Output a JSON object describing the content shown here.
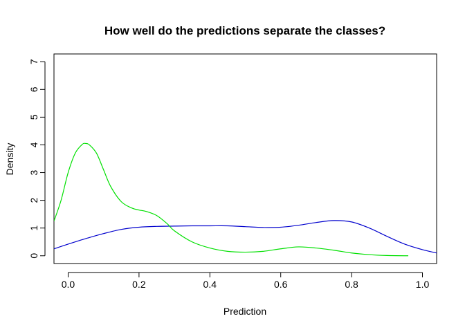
{
  "chart_data": {
    "type": "line",
    "title": "How well do the predictions separate the classes?",
    "xlabel": "Prediction",
    "ylabel": "Density",
    "xlim": [
      -0.04,
      1.04
    ],
    "ylim": [
      -0.28,
      7.28
    ],
    "x_ticks": [
      0.0,
      0.2,
      0.4,
      0.6,
      0.8,
      1.0
    ],
    "x_tick_labels": [
      "0.0",
      "0.2",
      "0.4",
      "0.6",
      "0.8",
      "1.0"
    ],
    "y_ticks": [
      0,
      1,
      2,
      3,
      4,
      5,
      6,
      7
    ],
    "y_tick_labels": [
      "0",
      "1",
      "2",
      "3",
      "4",
      "5",
      "6",
      "7"
    ],
    "grid": false,
    "legend": "none",
    "series": [
      {
        "color": "#0000cd",
        "x": [
          -0.04,
          0.0,
          0.05,
          0.1,
          0.15,
          0.2,
          0.25,
          0.3,
          0.35,
          0.4,
          0.45,
          0.5,
          0.55,
          0.6,
          0.65,
          0.7,
          0.75,
          0.8,
          0.85,
          0.9,
          0.95,
          1.0,
          1.04
        ],
        "y": [
          0.25,
          0.42,
          0.62,
          0.8,
          0.95,
          1.03,
          1.06,
          1.07,
          1.08,
          1.08,
          1.08,
          1.05,
          1.02,
          1.03,
          1.1,
          1.2,
          1.27,
          1.22,
          1.0,
          0.7,
          0.42,
          0.22,
          0.1
        ]
      },
      {
        "color": "#00e000",
        "x": [
          -0.04,
          -0.02,
          0.0,
          0.02,
          0.04,
          0.05,
          0.06,
          0.08,
          0.1,
          0.12,
          0.15,
          0.18,
          0.2,
          0.22,
          0.25,
          0.28,
          0.3,
          0.35,
          0.4,
          0.45,
          0.5,
          0.55,
          0.6,
          0.65,
          0.7,
          0.75,
          0.8,
          0.85,
          0.9,
          0.96
        ],
        "y": [
          1.25,
          2.0,
          3.0,
          3.7,
          4.02,
          4.05,
          4.0,
          3.7,
          3.1,
          2.5,
          1.95,
          1.72,
          1.65,
          1.6,
          1.45,
          1.15,
          0.9,
          0.5,
          0.28,
          0.16,
          0.13,
          0.16,
          0.25,
          0.32,
          0.28,
          0.2,
          0.1,
          0.04,
          0.01,
          0.0
        ]
      }
    ]
  }
}
